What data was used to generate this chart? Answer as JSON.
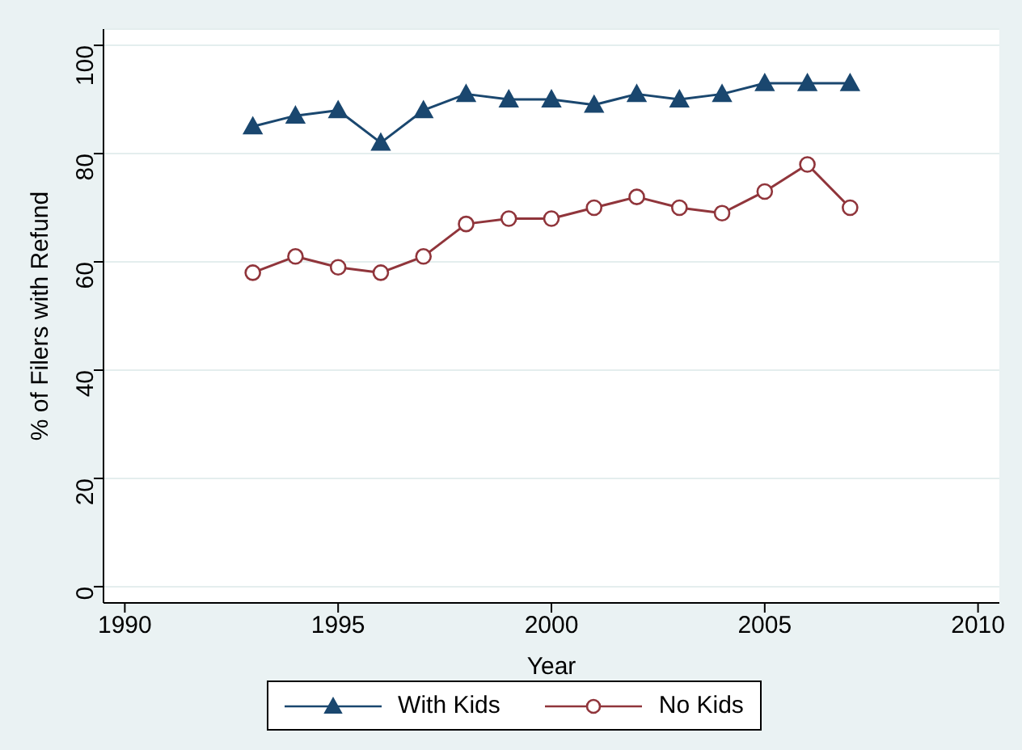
{
  "chart_data": {
    "type": "line",
    "xlabel": "Year",
    "ylabel": "% of Filers with Refund",
    "x": [
      1993,
      1994,
      1995,
      1996,
      1997,
      1998,
      1999,
      2000,
      2001,
      2002,
      2003,
      2004,
      2005,
      2006,
      2007
    ],
    "series": [
      {
        "name": "With Kids",
        "color": "#1a476f",
        "marker": "triangle",
        "values": [
          85,
          87,
          88,
          82,
          88,
          91,
          90,
          90,
          89,
          91,
          90,
          91,
          93,
          93,
          93
        ]
      },
      {
        "name": "No Kids",
        "color": "#90353b",
        "marker": "circle",
        "values": [
          58,
          61,
          59,
          58,
          61,
          67,
          68,
          68,
          70,
          72,
          70,
          69,
          73,
          78,
          70
        ]
      }
    ],
    "xlim": [
      1989.5,
      2010.5
    ],
    "xticks": [
      1990,
      1995,
      2000,
      2005,
      2010
    ],
    "ylim": [
      -3,
      103
    ],
    "yticks": [
      0,
      20,
      40,
      60,
      80,
      100
    ],
    "grid": "y",
    "legend": "bottom"
  }
}
